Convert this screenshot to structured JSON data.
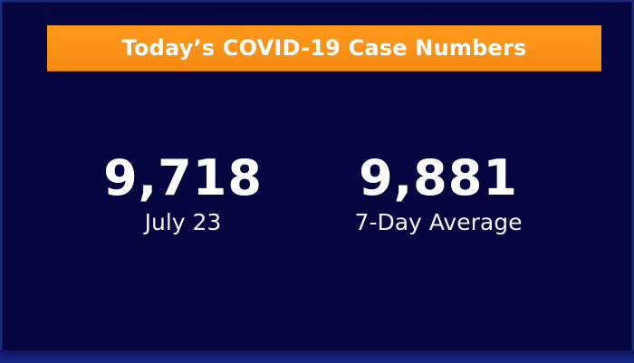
{
  "banner": {
    "title": "Today’s COVID-19 Case Numbers",
    "color": "#f68a10"
  },
  "stats": [
    {
      "value": "9,718",
      "label": "July 23"
    },
    {
      "value": "9,881",
      "label": "7-Day Average"
    }
  ],
  "colors": {
    "background": "#050540",
    "text": "#ffffff"
  }
}
